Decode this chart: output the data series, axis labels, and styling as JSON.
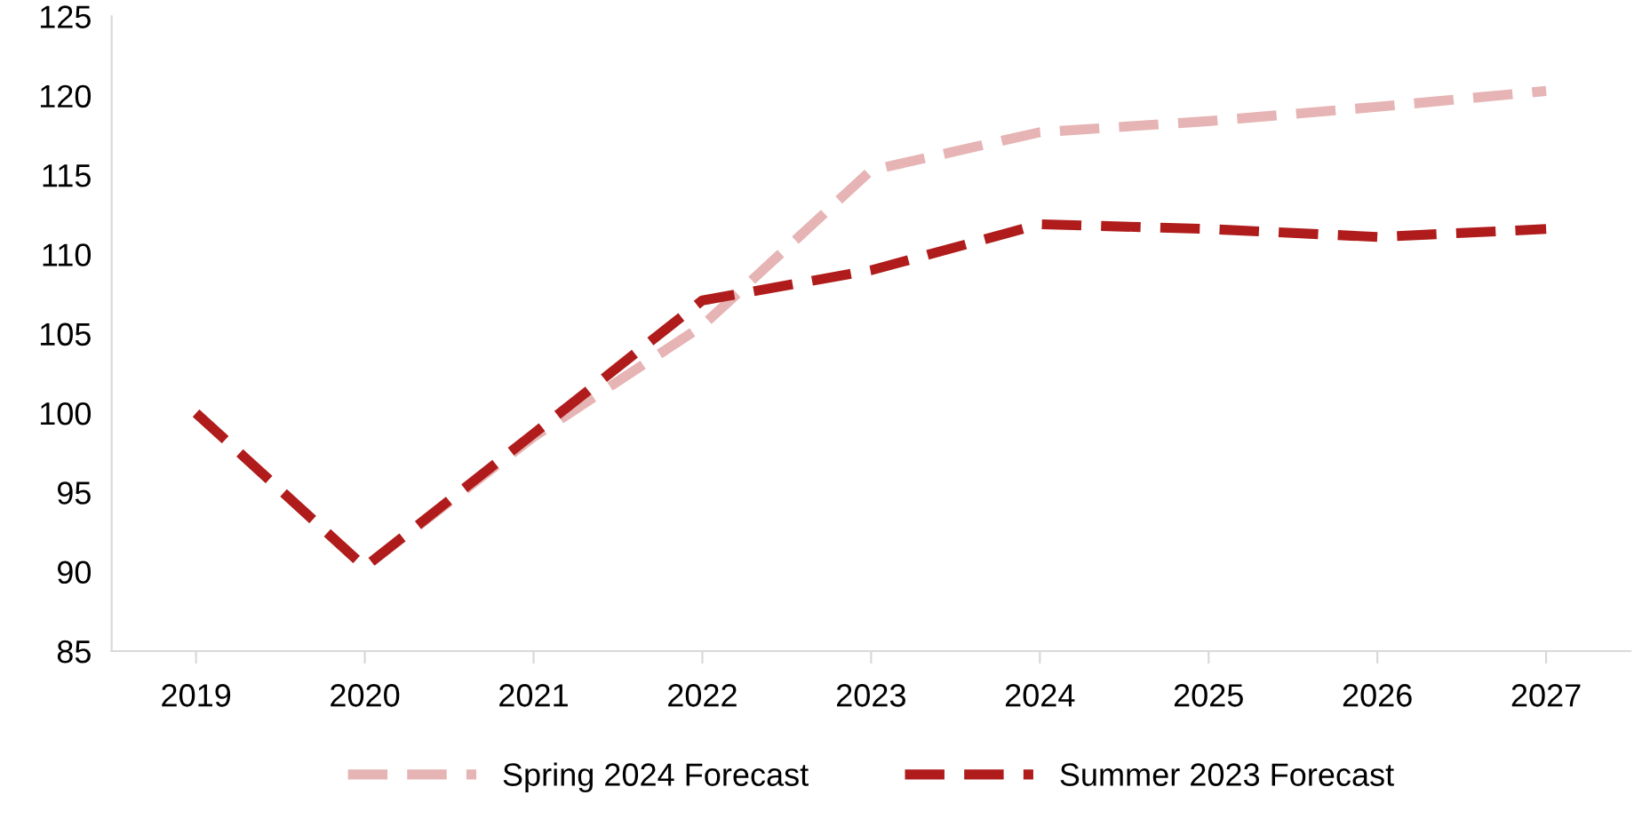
{
  "chart_data": {
    "type": "line",
    "categories": [
      "2019",
      "2020",
      "2021",
      "2022",
      "2023",
      "2024",
      "2025",
      "2026",
      "2027"
    ],
    "series": [
      {
        "name": "Spring 2024 Forecast",
        "color": "#e6b4b4",
        "values": [
          100,
          90.3,
          98.5,
          105.5,
          115.3,
          117.7,
          118.4,
          119.3,
          120.3
        ]
      },
      {
        "name": "Summer 2023 Forecast",
        "color": "#b01c1c",
        "values": [
          100,
          90.3,
          98.7,
          107.1,
          109.0,
          111.9,
          111.6,
          111.1,
          111.6
        ]
      }
    ],
    "ylim": [
      85,
      125
    ],
    "yticks": [
      85,
      90,
      95,
      100,
      105,
      110,
      115,
      120,
      125
    ],
    "grid": false,
    "legend": "bottom",
    "line_style": "dashed",
    "marker": "none"
  }
}
